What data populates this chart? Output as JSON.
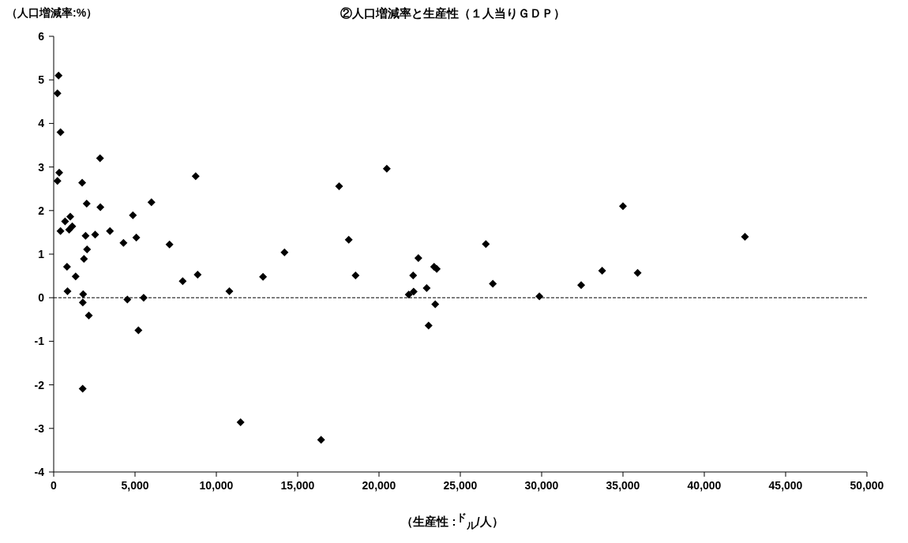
{
  "chart_data": {
    "type": "scatter",
    "title": "②人口増減率と生産性（１人当りＧＤＰ）",
    "ylabel": "（人口増減率:%）",
    "xlabel": "（生産性 :$^{ド}$$_{ル}$/人）",
    "x": [
      300,
      230,
      420,
      2850,
      340,
      230,
      1750,
      8730,
      6010,
      2030,
      2870,
      4870,
      1020,
      700,
      1140,
      950,
      420,
      3460,
      1960,
      2550,
      5080,
      4290,
      7120,
      2050,
      1860,
      820,
      1350,
      8850,
      7930,
      850,
      1810,
      10800,
      1790,
      4530,
      5530,
      2160,
      5210,
      1780,
      11490,
      16440,
      12870,
      14190,
      17550,
      18140,
      18560,
      20480,
      22420,
      22100,
      22130,
      21830,
      22930,
      23390,
      23550,
      23460,
      23050,
      26570,
      27000,
      29860,
      32430,
      33720,
      35000,
      35900,
      42500
    ],
    "values": [
      5.1,
      4.69,
      3.8,
      3.2,
      2.87,
      2.68,
      2.64,
      2.79,
      2.19,
      2.16,
      2.08,
      1.89,
      1.86,
      1.75,
      1.64,
      1.56,
      1.53,
      1.53,
      1.42,
      1.45,
      1.38,
      1.26,
      1.22,
      1.11,
      0.89,
      0.71,
      0.49,
      0.53,
      0.38,
      0.15,
      0.08,
      0.15,
      -0.11,
      -0.04,
      0.0,
      -0.41,
      -0.75,
      -2.09,
      -2.86,
      -3.26,
      0.48,
      1.04,
      2.56,
      1.33,
      0.51,
      2.96,
      0.91,
      0.51,
      0.14,
      0.07,
      0.22,
      0.71,
      0.66,
      -0.15,
      -0.64,
      1.23,
      0.32,
      0.03,
      0.29,
      0.62,
      2.1,
      0.57,
      1.4
    ],
    "color": "#000000",
    "marker": "diamond",
    "grid": false,
    "xlim": [
      0,
      50000
    ],
    "xticks": [
      0,
      {
        "value": 5000,
        "label": "5,000"
      },
      {
        "value": 10000,
        "label": "10,000"
      },
      {
        "value": 15000,
        "label": "15,000"
      },
      {
        "value": 20000,
        "label": "20,000"
      },
      {
        "value": 25000,
        "label": "25,000"
      },
      {
        "value": 30000,
        "label": "30,000"
      },
      {
        "value": 35000,
        "label": "35,000"
      },
      {
        "value": 40000,
        "label": "40,000"
      },
      {
        "value": 45000,
        "label": "45,000"
      },
      {
        "value": 50000,
        "label": "50,000"
      }
    ],
    "ylim": [
      -4,
      6
    ],
    "yticks": [
      -4,
      -3,
      -2,
      -1,
      0,
      1,
      2,
      3,
      4,
      5,
      6
    ],
    "ref_lines": [
      {
        "axis": "y",
        "value": 0,
        "line_style": "dashed",
        "color": "#000000"
      }
    ]
  }
}
